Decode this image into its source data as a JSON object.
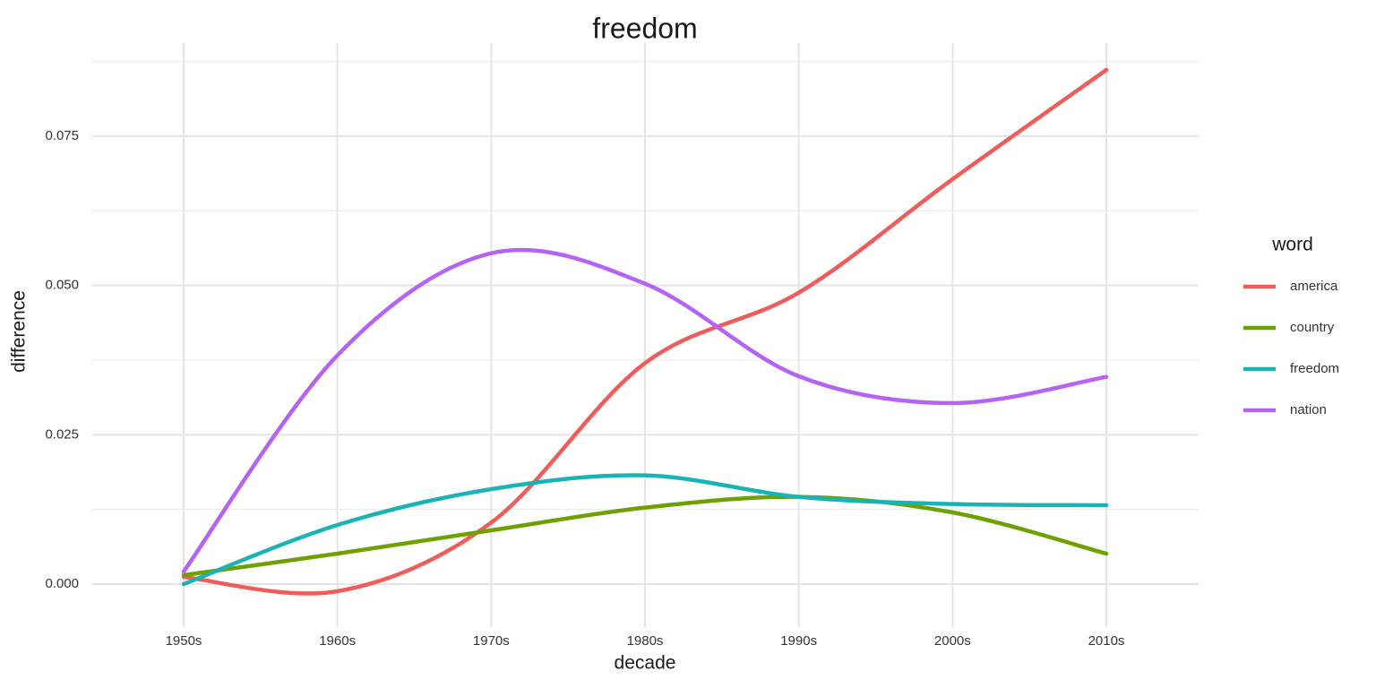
{
  "chart_data": {
    "type": "line",
    "title": "freedom",
    "x_label": "decade",
    "y_label": "difference",
    "legend_title": "word",
    "legend": "right",
    "grid": true,
    "categories": [
      "1950s",
      "1960s",
      "1970s",
      "1980s",
      "1990s",
      "2000s",
      "2010s"
    ],
    "ylim": [
      -0.0072,
      0.0906
    ],
    "yticks": [
      {
        "value": 0,
        "label": "0.000"
      },
      {
        "value": 0.025,
        "label": "0.025"
      },
      {
        "value": 0.05,
        "label": "0.050"
      },
      {
        "value": 0.075,
        "label": "0.075"
      }
    ],
    "series": [
      {
        "name": "america",
        "color": "#ef5d5a",
        "values": [
          0.0012,
          -0.0012,
          0.0103,
          0.037,
          0.0488,
          0.0678,
          0.0861
        ]
      },
      {
        "name": "country",
        "color": "#6ea000",
        "values": [
          0.0015,
          0.0051,
          0.009,
          0.0128,
          0.0146,
          0.012,
          0.0051
        ]
      },
      {
        "name": "freedom",
        "color": "#1ab3b5",
        "values": [
          0.0,
          0.0099,
          0.0159,
          0.0182,
          0.0146,
          0.0134,
          0.0132
        ]
      },
      {
        "name": "nation",
        "color": "#b662f5",
        "values": [
          0.0021,
          0.0383,
          0.0554,
          0.0503,
          0.0348,
          0.0303,
          0.0347
        ]
      }
    ]
  }
}
